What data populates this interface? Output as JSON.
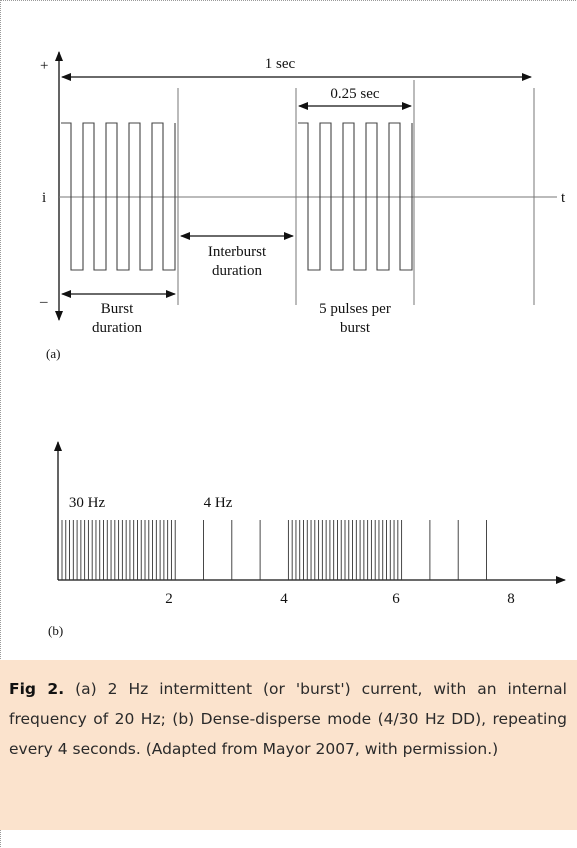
{
  "diagram_a": {
    "plus_label": "+",
    "minus_label": "–",
    "i_label": "i",
    "t_label": "t",
    "one_sec": "1 sec",
    "quarter_sec": "0.25 sec",
    "interburst_line1": "Interburst",
    "interburst_line2": "duration",
    "burst_line1": "Burst",
    "burst_line2": "duration",
    "pulses_line1": "5 pulses per",
    "pulses_line2": "burst",
    "panel_label": "(a)"
  },
  "diagram_b": {
    "label_30hz": "30 Hz",
    "label_4hz": "4 Hz",
    "ticks": [
      "2",
      "4",
      "6",
      "8"
    ],
    "panel_label": "(b)",
    "segments": [
      {
        "start": 0,
        "end": 2,
        "freq": 30
      },
      {
        "start": 2,
        "end": 4,
        "freq": 4
      },
      {
        "start": 4,
        "end": 6,
        "freq": 30
      },
      {
        "start": 6,
        "end": 8,
        "freq": 4
      }
    ]
  },
  "caption": {
    "label": "Fig 2.",
    "text": "(a) 2 Hz intermittent (or 'burst') current, with an internal frequency of 20 Hz; (b) Dense-disperse mode (4/30 Hz DD), repeating every 4 seconds. (Adapted from Mayor 2007, with permission.)"
  }
}
